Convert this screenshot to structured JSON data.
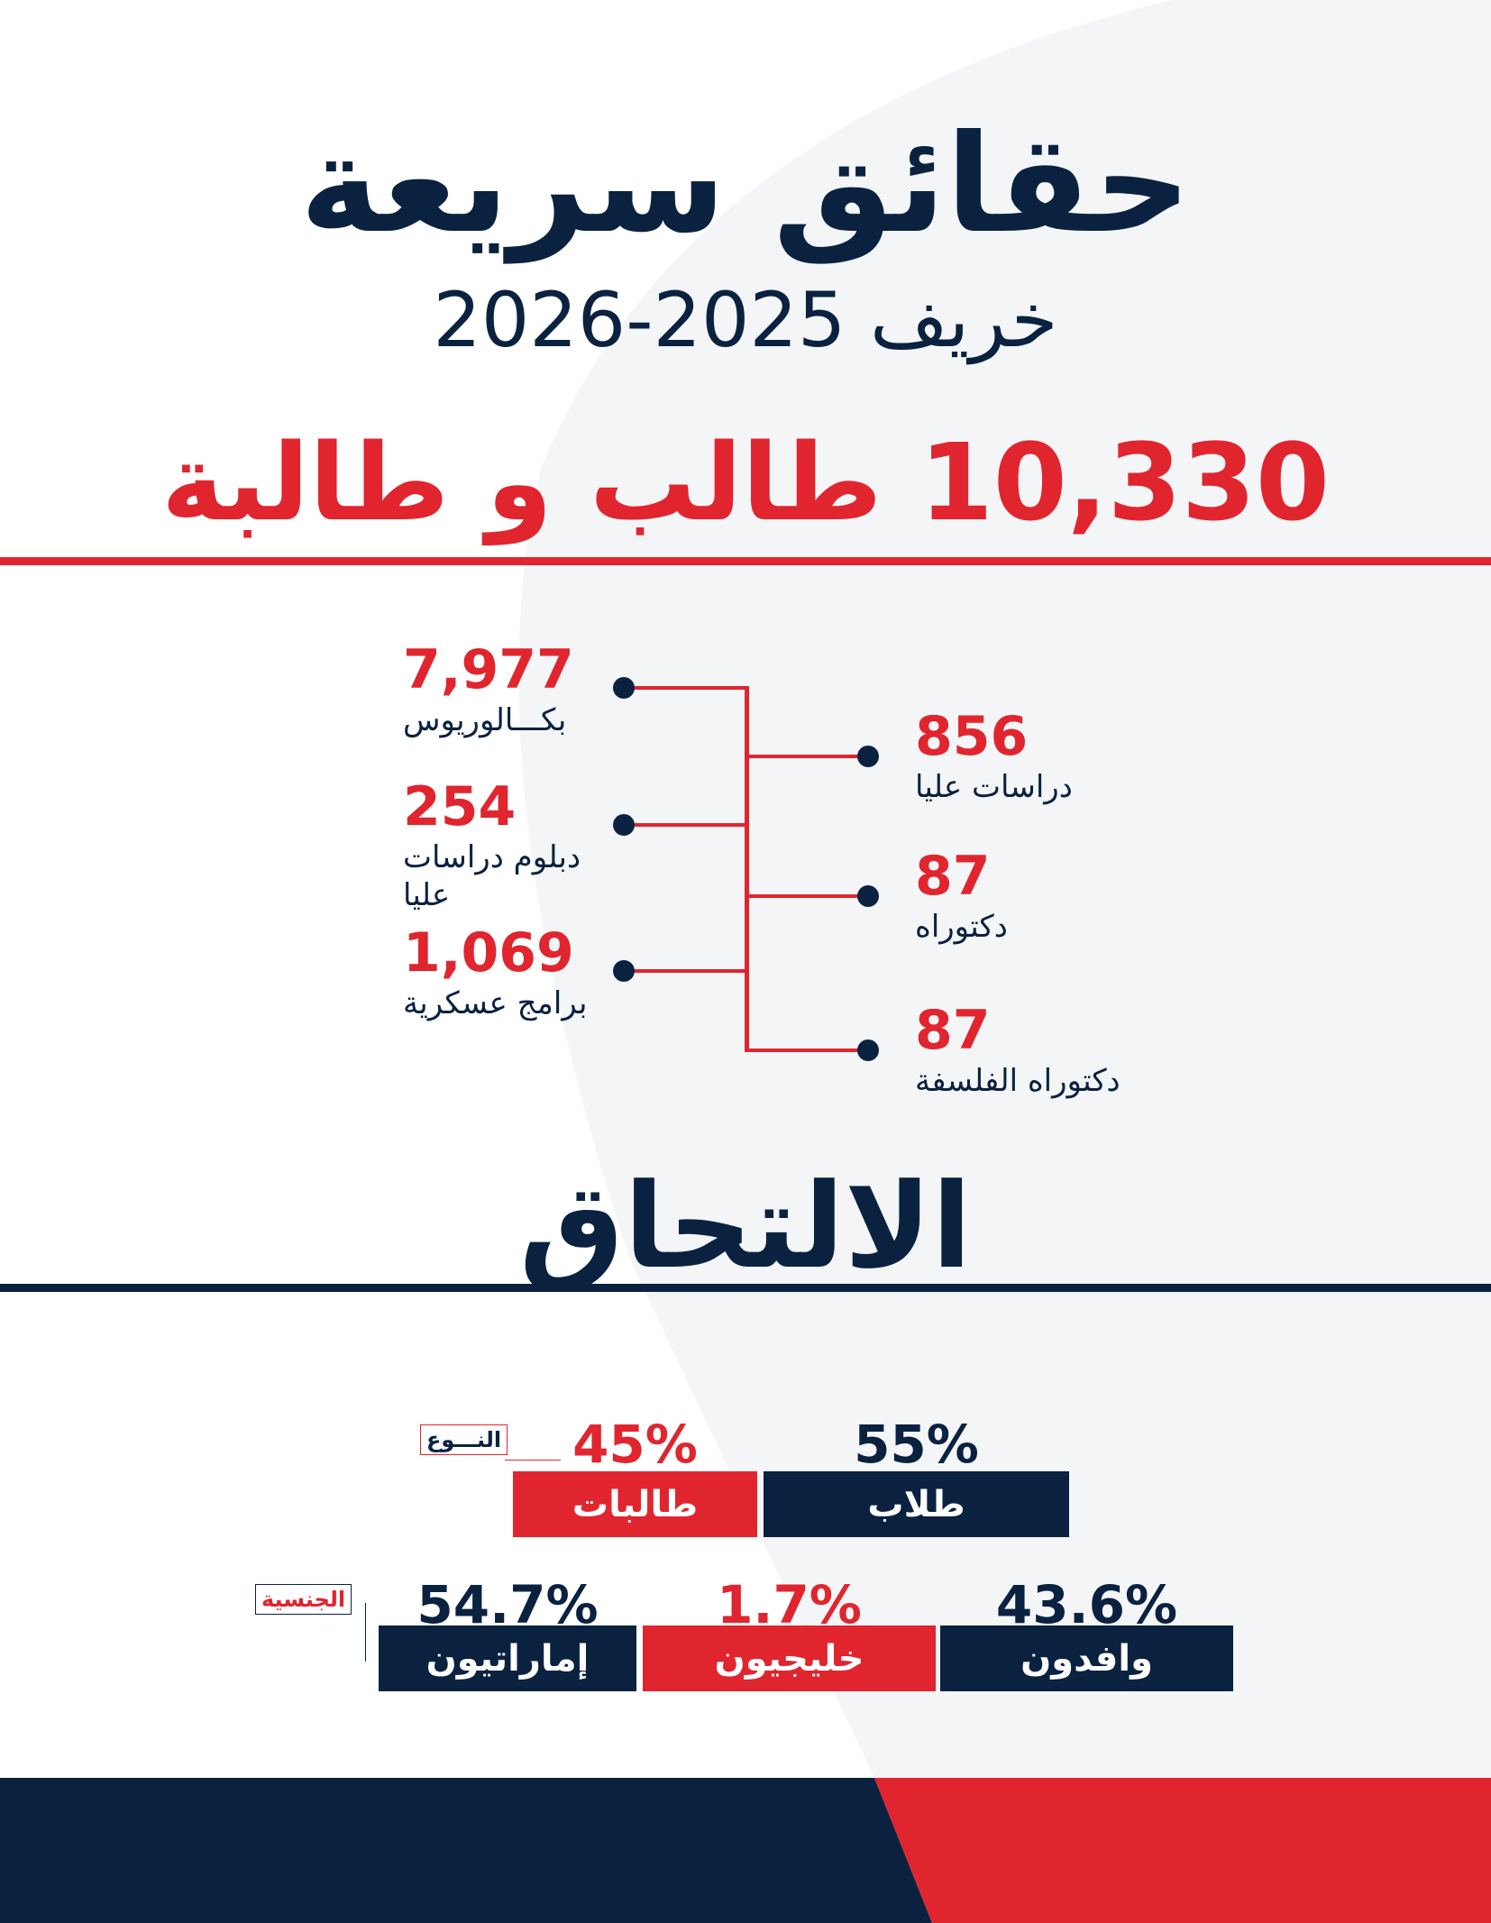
{
  "colors": {
    "navy": "#0a2240",
    "red": "#e0252f",
    "background_shape": "#f4f5f7"
  },
  "header": {
    "title": "حقائق سريعة",
    "subtitle": "خريف 2025-2026",
    "total": "10,330 طالب و طالبة"
  },
  "programs": {
    "left": [
      {
        "value": "7,977",
        "label": "بكـــالوريوس"
      },
      {
        "value": "254",
        "label": "دبلوم دراسات عليا"
      },
      {
        "value": "1,069",
        "label": "برامج عسكرية"
      }
    ],
    "right": [
      {
        "value": "856",
        "label": "دراسات عليا"
      },
      {
        "value": "87",
        "label": "دكتوراه"
      },
      {
        "value": "87",
        "label": "دكتوراه الفلسفة"
      }
    ]
  },
  "enrollment": {
    "title": "الالتحاق",
    "gender": {
      "tag": "النـــوع",
      "items": [
        {
          "percent": "55%",
          "label": "طلاب",
          "value": 55
        },
        {
          "percent": "45%",
          "label": "طالبات",
          "value": 45
        }
      ]
    },
    "nationality": {
      "tag": "الجنسية",
      "items": [
        {
          "percent": "43.6%",
          "label": "وافدون",
          "value": 43.6
        },
        {
          "percent": "1.7%",
          "label": "خليجيون",
          "value": 1.7
        },
        {
          "percent": "54.7%",
          "label": "إماراتيون",
          "value": 54.7
        }
      ]
    }
  }
}
